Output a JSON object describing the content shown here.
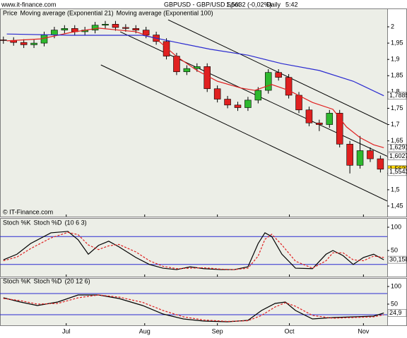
{
  "header": {
    "site": "www.it-finance.com",
    "title": "GBPUSD - GBP/USD Spot",
    "quote": "1,5632 (-0,02%)",
    "period": "Daily",
    "time": "5:42"
  },
  "chart_data": [
    {
      "type": "candlestick",
      "panel_label": "Price",
      "footnote": "© IT-Finance.com",
      "xlim": [
        0,
        114
      ],
      "ylim": [
        1.4175,
        2.052
      ],
      "yticks": [
        2,
        {
          "value": 1.95,
          "label": "1,95"
        },
        {
          "value": 1.9,
          "label": "1,9"
        },
        {
          "value": 1.85,
          "label": "1,85"
        },
        {
          "value": 1.8,
          "label": "1,8"
        },
        {
          "value": 1.75,
          "label": "1,75"
        },
        {
          "value": 1.7,
          "label": "1,7"
        },
        {
          "value": 1.65,
          "label": "1,65"
        },
        {
          "value": 1.6,
          "label": "1,6"
        },
        {
          "value": 1.55,
          "label": "1,55"
        },
        {
          "value": 1.5,
          "label": "1,5"
        },
        {
          "value": 1.45,
          "label": "1,45"
        }
      ],
      "x": [
        1,
        4,
        7,
        10,
        13,
        16,
        19,
        22,
        25,
        28,
        31,
        34,
        37,
        40,
        43,
        46,
        49,
        52,
        55,
        58,
        61,
        64,
        67,
        70,
        73,
        76,
        79,
        82,
        85,
        88,
        91,
        94,
        97,
        100,
        103,
        106,
        109,
        112
      ],
      "open": [
        1.96,
        1.958,
        1.952,
        1.945,
        1.95,
        1.975,
        1.99,
        1.995,
        1.985,
        1.99,
        2.005,
        2.008,
        1.998,
        1.995,
        1.99,
        1.975,
        1.955,
        1.91,
        1.862,
        1.872,
        1.878,
        1.81,
        1.778,
        1.76,
        1.752,
        1.775,
        1.805,
        1.86,
        1.845,
        1.79,
        1.745,
        1.705,
        1.7,
        1.735,
        1.64,
        1.575,
        1.62,
        1.595
      ],
      "high": [
        1.97,
        1.968,
        1.962,
        1.96,
        1.985,
        2.0,
        2.005,
        2.005,
        2.0,
        2.015,
        2.018,
        2.018,
        2.008,
        2.005,
        2.0,
        1.985,
        1.965,
        1.92,
        1.882,
        1.888,
        1.888,
        1.82,
        1.788,
        1.77,
        1.785,
        1.815,
        1.87,
        1.87,
        1.855,
        1.8,
        1.755,
        1.715,
        1.745,
        1.745,
        1.65,
        1.665,
        1.63,
        1.605
      ],
      "low": [
        1.948,
        1.942,
        1.935,
        1.935,
        1.94,
        1.965,
        1.98,
        1.975,
        1.975,
        1.98,
        1.995,
        1.988,
        1.985,
        1.98,
        1.965,
        1.945,
        1.9,
        1.852,
        1.852,
        1.862,
        1.8,
        1.768,
        1.75,
        1.742,
        1.742,
        1.765,
        1.795,
        1.835,
        1.78,
        1.735,
        1.695,
        1.68,
        1.69,
        1.63,
        1.55,
        1.565,
        1.585,
        1.553
      ],
      "close": [
        1.958,
        1.952,
        1.945,
        1.95,
        1.975,
        1.99,
        1.995,
        1.985,
        1.99,
        2.005,
        2.008,
        1.998,
        1.995,
        1.99,
        1.975,
        1.955,
        1.91,
        1.862,
        1.872,
        1.878,
        1.81,
        1.778,
        1.76,
        1.752,
        1.775,
        1.805,
        1.86,
        1.845,
        1.79,
        1.745,
        1.705,
        1.7,
        1.735,
        1.64,
        1.575,
        1.62,
        1.595,
        1.563
      ],
      "up_color": "#2eb82e",
      "down_color": "#e02020",
      "series": [
        {
          "name": "Moving average (Exponential 21)",
          "color": "#e02020",
          "x": [
            2,
            12,
            21,
            29,
            40,
            46,
            52,
            58,
            64,
            71,
            75,
            80,
            85,
            92,
            98,
            102,
            106,
            110,
            113
          ],
          "values": [
            1.957,
            1.963,
            1.983,
            1.996,
            1.985,
            1.963,
            1.909,
            1.866,
            1.833,
            1.812,
            1.805,
            1.823,
            1.805,
            1.768,
            1.747,
            1.693,
            1.66,
            1.638,
            1.6291
          ]
        },
        {
          "name": "Moving average (Exponential 100)",
          "color": "#2a2ad0",
          "x": [
            2,
            21,
            42,
            52,
            62,
            73,
            83,
            94,
            104,
            113
          ],
          "values": [
            1.978,
            1.974,
            1.974,
            1.952,
            1.931,
            1.913,
            1.887,
            1.866,
            1.833,
            1.7885
          ]
        }
      ],
      "trendlines": [
        {
          "x": [
            49.5,
            114
          ],
          "values": [
            2.0216,
            1.7013
          ]
        },
        {
          "x": [
            35.4,
            114
          ],
          "values": [
            1.9848,
            1.6027
          ]
        },
        {
          "x": [
            29.7,
            114
          ],
          "values": [
            1.8831,
            1.4654
          ]
        }
      ],
      "trendline_color": "#000000",
      "price_markers": [
        {
          "value": 1.7885,
          "label": "1,7885",
          "color": "#ffffff"
        },
        {
          "value": 1.6291,
          "label": "1,6291",
          "color": "#ffffff"
        },
        {
          "value": 1.6027,
          "label": "1,6027",
          "color": "#ffffff"
        },
        {
          "value": 1.5632,
          "label": "1,5632",
          "color": "#ffd800"
        },
        {
          "value": 1.5543,
          "label": "1,5543",
          "color": "#ffffff"
        }
      ]
    },
    {
      "type": "line",
      "params": "(10 6 3)",
      "xlim": [
        0,
        114
      ],
      "ylim": [
        0,
        100
      ],
      "yticks": [
        50,
        100
      ],
      "levels": [
        80,
        20
      ],
      "level_color": "#2a2ad0",
      "series": [
        {
          "name": "Stoch %K",
          "color": "#000000",
          "x": [
            1,
            5,
            9,
            15,
            20,
            23,
            26,
            29,
            32,
            35,
            40,
            44,
            48,
            52,
            56,
            60,
            65,
            69,
            73,
            76,
            78,
            80,
            83,
            87,
            92,
            96,
            98,
            101,
            104,
            107,
            110,
            113
          ],
          "values": [
            30,
            42,
            65,
            88,
            91,
            73,
            42,
            61,
            70,
            58,
            35,
            20,
            12,
            9,
            15,
            11,
            9,
            9,
            15,
            65,
            88,
            80,
            42,
            12,
            11,
            42,
            50,
            39,
            20,
            35,
            42,
            30.158
          ]
        },
        {
          "name": "Stoch %D",
          "color": "#e02020",
          "dashed": true,
          "x": [
            1,
            5,
            9,
            15,
            20,
            23,
            26,
            29,
            32,
            35,
            40,
            44,
            48,
            52,
            56,
            60,
            65,
            69,
            73,
            76,
            78,
            80,
            83,
            87,
            92,
            96,
            98,
            101,
            104,
            107,
            110,
            113
          ],
          "values": [
            28,
            36,
            54,
            77,
            89,
            84,
            62,
            52,
            60,
            63,
            47,
            28,
            16,
            11,
            12,
            13,
            10,
            9,
            12,
            38,
            74,
            85,
            62,
            27,
            12,
            28,
            45,
            45,
            30,
            28,
            38,
            35
          ]
        }
      ],
      "value_markers": [
        {
          "value": 30.158,
          "label": "30,158"
        }
      ]
    },
    {
      "type": "line",
      "params": "(20 12 6)",
      "xlim": [
        0,
        114
      ],
      "ylim": [
        0,
        100
      ],
      "yticks": [
        50,
        100
      ],
      "levels": [
        80,
        20
      ],
      "level_color": "#2a2ad0",
      "series": [
        {
          "name": "Stoch %K",
          "color": "#000000",
          "x": [
            1,
            6,
            11,
            17,
            23,
            29,
            35,
            42,
            48,
            54,
            60,
            67,
            73,
            77,
            81,
            84,
            87,
            92,
            98,
            104,
            110,
            113
          ],
          "values": [
            68,
            56,
            46,
            56,
            76,
            76,
            66,
            46,
            22,
            8,
            2,
            0,
            4,
            32,
            52,
            56,
            32,
            8,
            12,
            14,
            16,
            24.9
          ]
        },
        {
          "name": "Stoch %D",
          "color": "#e02020",
          "dashed": true,
          "x": [
            1,
            6,
            11,
            17,
            23,
            29,
            35,
            42,
            48,
            54,
            60,
            67,
            73,
            77,
            81,
            84,
            87,
            92,
            98,
            104,
            110,
            113
          ],
          "values": [
            66,
            60,
            50,
            52,
            68,
            76,
            70,
            55,
            32,
            14,
            5,
            1,
            3,
            18,
            42,
            54,
            44,
            18,
            10,
            12,
            14,
            20
          ]
        }
      ],
      "value_markers": [
        {
          "value": 24.9,
          "label": "24,9"
        }
      ],
      "xticks": [
        {
          "value": 19.5,
          "label": "Jul"
        },
        {
          "value": 42.6,
          "label": "Aug"
        },
        {
          "value": 64,
          "label": "Sep"
        },
        {
          "value": 85.2,
          "label": "Oct"
        },
        {
          "value": 107,
          "label": "Nov"
        }
      ]
    }
  ]
}
